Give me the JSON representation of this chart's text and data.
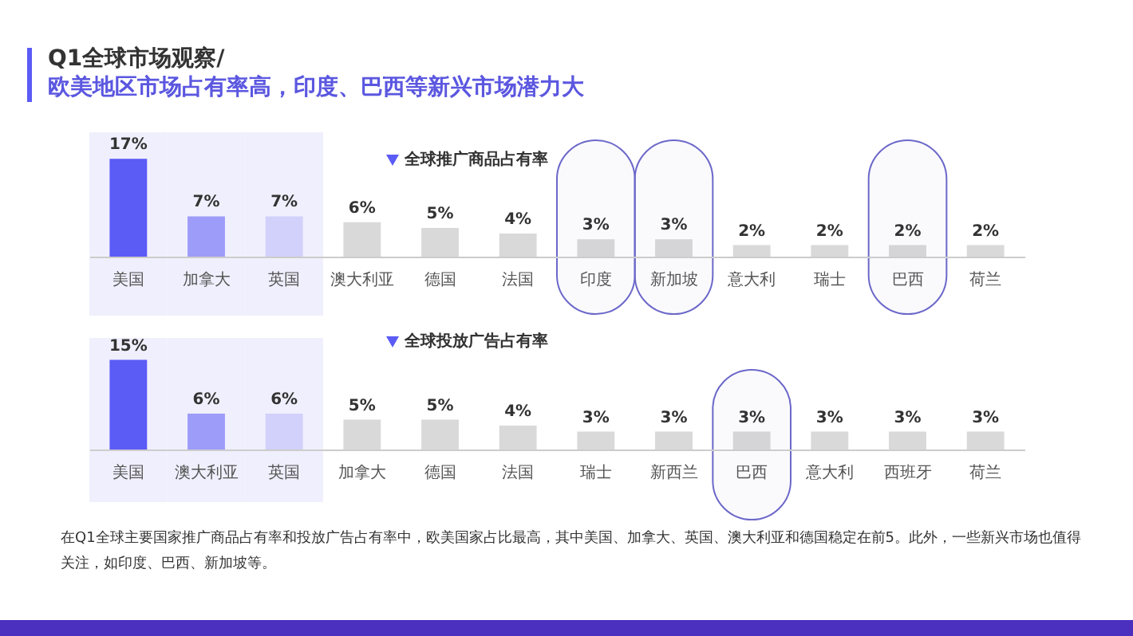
{
  "chart_data": [
    {
      "type": "bar",
      "title": "全球推广商品占有率",
      "annotations": [
        "Q1全球市场观察/",
        "欧美地区市场占有率高，印度、巴西等新兴市场潜力大"
      ],
      "categories": [
        "美国",
        "加拿大",
        "英国",
        "澳大利亚",
        "德国",
        "法国",
        "印度",
        "新加坡",
        "意大利",
        "瑞士",
        "巴西",
        "荷兰"
      ],
      "values": [
        17,
        7,
        7,
        6,
        5,
        4,
        3,
        3,
        2,
        2,
        2,
        2
      ],
      "colors": [
        "#5b5bf6",
        "#9d9cf8",
        "#d2d1fb",
        "#d9d9d9",
        "#d9d9d9",
        "#d9d9d9",
        "#d9d9d9",
        "#d9d9d9",
        "#d9d9d9",
        "#d9d9d9",
        "#d9d9d9",
        "#d9d9d9"
      ],
      "value_labels": [
        "17%",
        "7%",
        "7%",
        "6%",
        "5%",
        "4%",
        "3%",
        "3%",
        "2%",
        "2%",
        "2%",
        "2%"
      ],
      "bands": [
        {
          "axis": "x",
          "from": "美国",
          "to": "英国",
          "color": "#f0effd"
        },
        {
          "axis": "x",
          "from": "印度",
          "to": "印度",
          "color": "#6c68c9"
        },
        {
          "axis": "x",
          "from": "新加坡",
          "to": "新加坡",
          "color": "#6c68c9"
        },
        {
          "axis": "x",
          "from": "巴西",
          "to": "巴西",
          "color": "#6c68c9"
        }
      ]
    },
    {
      "type": "bar",
      "title": "全球投放广告占有率",
      "annotations": [
        "在Q1全球主要国家推广商品占有率和投放广告占有率中，欧美国家占比最高，其中美国、加拿大、英国、澳大利亚和德国稳定在前5。此外，一些新兴市场也值得关注，如印度、巴西、新加坡等。"
      ],
      "categories": [
        "美国",
        "澳大利亚",
        "英国",
        "加拿大",
        "德国",
        "法国",
        "瑞士",
        "新西兰",
        "巴西",
        "意大利",
        "西班牙",
        "荷兰"
      ],
      "values": [
        15,
        6,
        6,
        5,
        5,
        4,
        3,
        3,
        3,
        3,
        3,
        3
      ],
      "colors": [
        "#5b5bf6",
        "#9d9cf8",
        "#d2d1fb",
        "#d9d9d9",
        "#d9d9d9",
        "#d9d9d9",
        "#d9d9d9",
        "#d9d9d9",
        "#d9d9d9",
        "#d9d9d9",
        "#d9d9d9",
        "#d9d9d9"
      ],
      "value_labels": [
        "15%",
        "6%",
        "6%",
        "5%",
        "5%",
        "4%",
        "3%",
        "3%",
        "3%",
        "3%",
        "3%",
        "3%"
      ],
      "bands": [
        {
          "axis": "x",
          "from": "美国",
          "to": "英国",
          "color": "#f0effd"
        },
        {
          "axis": "x",
          "from": "巴西",
          "to": "巴西",
          "color": "#6c68c9"
        }
      ]
    }
  ]
}
